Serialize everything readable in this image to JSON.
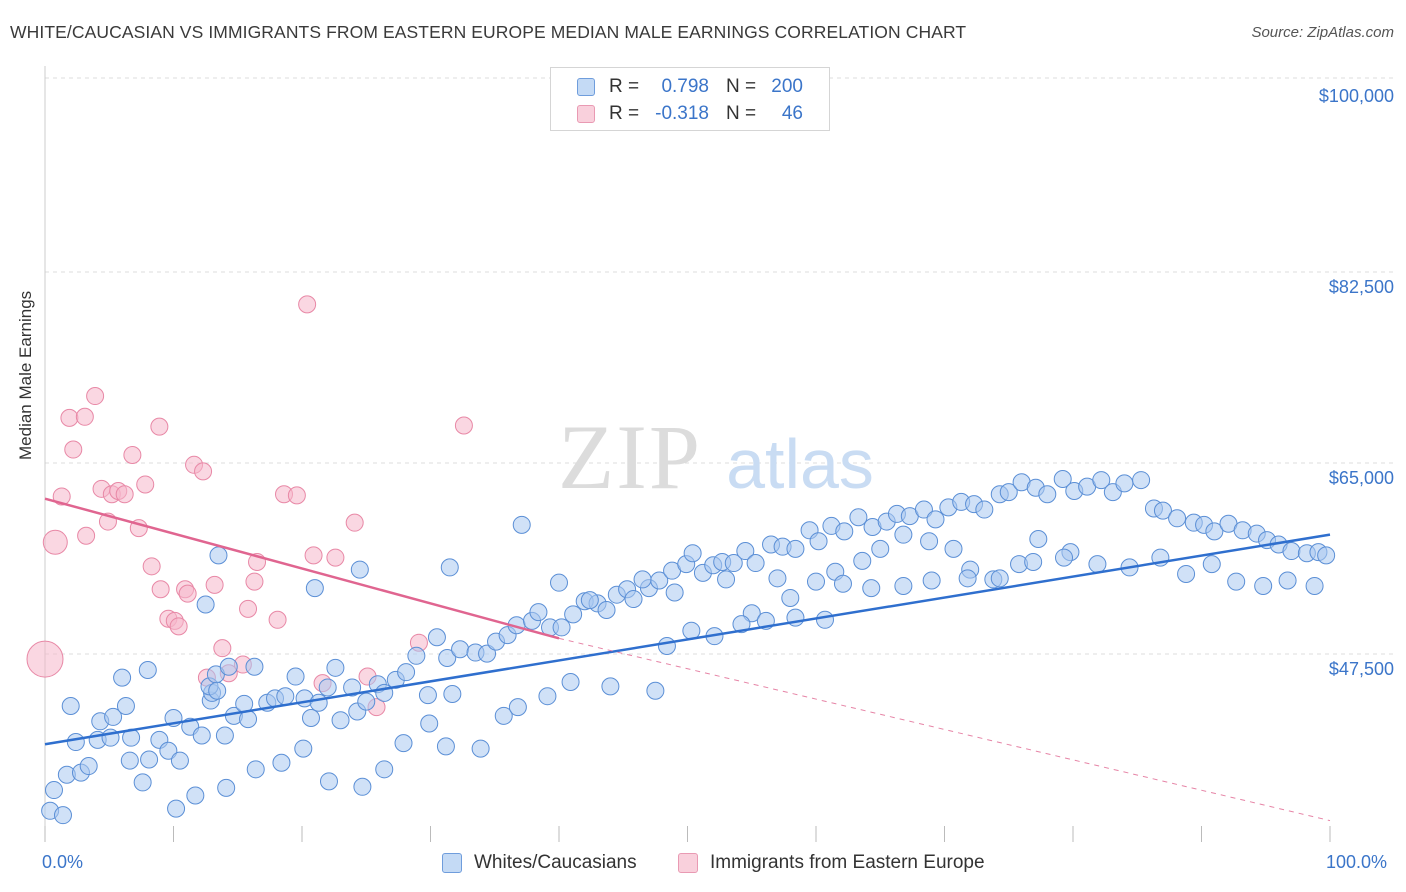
{
  "header": {
    "title": "WHITE/CAUCASIAN VS IMMIGRANTS FROM EASTERN EUROPE MEDIAN MALE EARNINGS CORRELATION CHART",
    "source": "Source: ZipAtlas.com"
  },
  "watermark": {
    "zip": "ZIP",
    "atlas": "atlas"
  },
  "legend_top": {
    "rows": [
      {
        "r_label": "R =",
        "r_value": "0.798",
        "n_label": "N =",
        "n_value": "200"
      },
      {
        "r_label": "R =",
        "r_value": "-0.318",
        "n_label": "N =",
        "n_value": "46"
      }
    ]
  },
  "legend_bottom": {
    "items": [
      "Whites/Caucasians",
      "Immigrants from Eastern Europe"
    ]
  },
  "colors": {
    "blue_fill": "#a9c8f0",
    "blue_stroke": "#5b8fd6",
    "blue_line": "#2f6fce",
    "pink_fill": "#f6b7ca",
    "pink_stroke": "#e888a6",
    "pink_line": "#e06590",
    "tick_text": "#3b75c9",
    "grid": "#dddddd"
  },
  "chart_data": {
    "type": "scatter",
    "title": "WHITE/CAUCASIAN VS IMMIGRANTS FROM EASTERN EUROPE MEDIAN MALE EARNINGS CORRELATION CHART",
    "xlabel": "",
    "ylabel": "Median Male Earnings",
    "x_tick_labels": [
      "0.0%",
      "100.0%"
    ],
    "y_tick_labels": [
      "$47,500",
      "$65,000",
      "$82,500",
      "$100,000"
    ],
    "y_ticks": [
      47500,
      65000,
      82500,
      100000
    ],
    "xlim": [
      0,
      100
    ],
    "ylim": [
      32000,
      102000
    ],
    "grid": true,
    "legend_placement": "top-center",
    "series": [
      {
        "name": "Whites/Caucasians",
        "color": "#a9c8f0",
        "R": 0.798,
        "N": 200,
        "trend": {
          "x": [
            0,
            100
          ],
          "y": [
            40700,
            59900
          ]
        },
        "points": [
          [
            0.4,
            34.6
          ],
          [
            0.7,
            36.5
          ],
          [
            1.4,
            34.2
          ],
          [
            1.7,
            37.9
          ],
          [
            2.4,
            40.9
          ],
          [
            2.8,
            38.1
          ],
          [
            3.4,
            38.7
          ],
          [
            4.1,
            41.1
          ],
          [
            4.3,
            42.8
          ],
          [
            5.3,
            43.2
          ],
          [
            6.3,
            44.2
          ],
          [
            5.1,
            41.3
          ],
          [
            6.7,
            41.3
          ],
          [
            6.6,
            39.2
          ],
          [
            7.6,
            37.2
          ],
          [
            8.1,
            39.3
          ],
          [
            8.9,
            41.1
          ],
          [
            9.6,
            40.1
          ],
          [
            10.0,
            43.1
          ],
          [
            10.5,
            39.2
          ],
          [
            11.3,
            42.3
          ],
          [
            12.2,
            41.5
          ],
          [
            12.9,
            44.7
          ],
          [
            13.0,
            45.4
          ],
          [
            12.8,
            46.0
          ],
          [
            13.3,
            47.1
          ],
          [
            13.4,
            45.6
          ],
          [
            14.3,
            47.8
          ],
          [
            14.0,
            41.5
          ],
          [
            14.7,
            43.3
          ],
          [
            15.5,
            44.4
          ],
          [
            15.8,
            43.0
          ],
          [
            16.3,
            47.8
          ],
          [
            17.3,
            44.5
          ],
          [
            17.9,
            44.9
          ],
          [
            18.7,
            45.1
          ],
          [
            19.5,
            46.9
          ],
          [
            20.2,
            44.9
          ],
          [
            20.7,
            43.1
          ],
          [
            21.3,
            44.5
          ],
          [
            22.0,
            45.9
          ],
          [
            22.6,
            47.7
          ],
          [
            23.0,
            42.9
          ],
          [
            23.9,
            45.9
          ],
          [
            24.3,
            43.7
          ],
          [
            25.0,
            44.6
          ],
          [
            25.9,
            46.2
          ],
          [
            26.4,
            45.4
          ],
          [
            27.3,
            46.6
          ],
          [
            28.1,
            47.3
          ],
          [
            28.9,
            48.8
          ],
          [
            29.8,
            45.2
          ],
          [
            30.5,
            50.5
          ],
          [
            31.3,
            48.6
          ],
          [
            31.7,
            45.3
          ],
          [
            32.3,
            49.4
          ],
          [
            33.5,
            49.1
          ],
          [
            34.4,
            49.0
          ],
          [
            35.1,
            50.1
          ],
          [
            36.0,
            50.7
          ],
          [
            36.7,
            51.6
          ],
          [
            37.9,
            52.0
          ],
          [
            38.4,
            52.8
          ],
          [
            39.3,
            51.4
          ],
          [
            40.2,
            51.4
          ],
          [
            41.1,
            52.6
          ],
          [
            42.0,
            53.8
          ],
          [
            43.0,
            53.6
          ],
          [
            43.7,
            53.0
          ],
          [
            44.5,
            54.4
          ],
          [
            45.3,
            54.9
          ],
          [
            45.8,
            54.0
          ],
          [
            47.0,
            55.0
          ],
          [
            47.8,
            55.7
          ],
          [
            48.8,
            56.6
          ],
          [
            49.9,
            57.2
          ],
          [
            50.4,
            58.2
          ],
          [
            51.2,
            56.4
          ],
          [
            52.0,
            57.1
          ],
          [
            52.7,
            57.4
          ],
          [
            53.6,
            57.3
          ],
          [
            54.5,
            58.4
          ],
          [
            55.3,
            57.3
          ],
          [
            56.5,
            59.0
          ],
          [
            57.4,
            58.8
          ],
          [
            58.4,
            58.6
          ],
          [
            59.5,
            60.3
          ],
          [
            60.2,
            59.3
          ],
          [
            61.2,
            60.7
          ],
          [
            62.2,
            60.2
          ],
          [
            63.3,
            61.5
          ],
          [
            64.4,
            60.6
          ],
          [
            65.5,
            61.1
          ],
          [
            66.3,
            61.8
          ],
          [
            67.3,
            61.6
          ],
          [
            68.4,
            62.2
          ],
          [
            69.3,
            61.3
          ],
          [
            70.3,
            62.4
          ],
          [
            71.3,
            62.9
          ],
          [
            72.3,
            62.7
          ],
          [
            73.1,
            62.2
          ],
          [
            74.3,
            63.6
          ],
          [
            75.0,
            63.8
          ],
          [
            76.0,
            64.7
          ],
          [
            77.1,
            64.2
          ],
          [
            78.0,
            63.6
          ],
          [
            79.2,
            65.0
          ],
          [
            80.1,
            63.9
          ],
          [
            81.1,
            64.3
          ],
          [
            82.2,
            64.9
          ],
          [
            83.1,
            63.8
          ],
          [
            84.0,
            64.6
          ],
          [
            85.3,
            64.9
          ],
          [
            86.3,
            62.3
          ],
          [
            87.0,
            62.1
          ],
          [
            88.1,
            61.4
          ],
          [
            89.4,
            61.0
          ],
          [
            90.2,
            60.8
          ],
          [
            91.0,
            60.2
          ],
          [
            92.1,
            60.9
          ],
          [
            93.2,
            60.3
          ],
          [
            94.3,
            60.0
          ],
          [
            95.1,
            59.4
          ],
          [
            96.0,
            59.0
          ],
          [
            97.0,
            58.4
          ],
          [
            98.2,
            58.2
          ],
          [
            99.1,
            58.3
          ],
          [
            99.7,
            58.0
          ],
          [
            13.5,
            58.0
          ],
          [
            12.5,
            53.5
          ],
          [
            8.0,
            47.5
          ],
          [
            6.0,
            46.8
          ],
          [
            2.0,
            44.2
          ],
          [
            21.0,
            55.0
          ],
          [
            24.5,
            56.7
          ],
          [
            31.5,
            56.9
          ],
          [
            37.1,
            60.8
          ],
          [
            40.0,
            55.5
          ],
          [
            42.4,
            53.9
          ],
          [
            46.5,
            55.8
          ],
          [
            49.0,
            54.6
          ],
          [
            53.0,
            55.8
          ],
          [
            55.0,
            52.7
          ],
          [
            57.0,
            55.9
          ],
          [
            58.0,
            54.1
          ],
          [
            60.0,
            55.6
          ],
          [
            61.5,
            56.5
          ],
          [
            63.6,
            57.5
          ],
          [
            65.0,
            58.6
          ],
          [
            66.8,
            59.9
          ],
          [
            68.8,
            59.3
          ],
          [
            70.7,
            58.6
          ],
          [
            72.0,
            56.7
          ],
          [
            73.8,
            55.8
          ],
          [
            75.8,
            57.2
          ],
          [
            77.3,
            59.5
          ],
          [
            79.8,
            58.3
          ],
          [
            81.9,
            57.2
          ],
          [
            84.4,
            56.9
          ],
          [
            86.8,
            57.8
          ],
          [
            88.8,
            56.3
          ],
          [
            90.8,
            57.2
          ],
          [
            92.7,
            55.6
          ],
          [
            94.8,
            55.2
          ],
          [
            96.7,
            55.7
          ],
          [
            98.8,
            55.2
          ],
          [
            14.1,
            36.7
          ],
          [
            10.2,
            34.8
          ],
          [
            11.7,
            36.0
          ],
          [
            16.4,
            38.4
          ],
          [
            18.4,
            39.0
          ],
          [
            20.1,
            40.3
          ],
          [
            22.1,
            37.3
          ],
          [
            24.7,
            36.8
          ],
          [
            26.4,
            38.4
          ],
          [
            27.9,
            40.8
          ],
          [
            29.9,
            42.6
          ],
          [
            31.2,
            40.5
          ],
          [
            33.9,
            40.3
          ],
          [
            35.7,
            43.3
          ],
          [
            36.8,
            44.1
          ],
          [
            39.1,
            45.1
          ],
          [
            40.9,
            46.4
          ],
          [
            44.0,
            46.0
          ],
          [
            47.5,
            45.6
          ],
          [
            48.4,
            49.7
          ],
          [
            50.3,
            51.1
          ],
          [
            52.1,
            50.6
          ],
          [
            54.2,
            51.7
          ],
          [
            56.1,
            52.0
          ],
          [
            58.4,
            52.3
          ],
          [
            60.7,
            52.1
          ],
          [
            62.1,
            55.4
          ],
          [
            64.3,
            55.0
          ],
          [
            66.8,
            55.2
          ],
          [
            69.0,
            55.7
          ],
          [
            71.8,
            55.9
          ],
          [
            74.3,
            55.9
          ],
          [
            76.9,
            57.4
          ],
          [
            79.3,
            57.8
          ]
        ]
      },
      {
        "name": "Immigrants from Eastern Europe",
        "color": "#f6b7ca",
        "R": -0.318,
        "N": 46,
        "trend": {
          "x": [
            0,
            40
          ],
          "y": [
            63200,
            50400
          ]
        },
        "trend_dashed_extension": {
          "x": [
            40,
            100
          ],
          "y": [
            50400,
            33700
          ]
        },
        "points": [
          [
            0.0,
            48.5
          ],
          [
            0.8,
            59.2
          ],
          [
            1.3,
            63.4
          ],
          [
            1.9,
            70.6
          ],
          [
            2.2,
            67.7
          ],
          [
            3.1,
            70.7
          ],
          [
            3.2,
            59.8
          ],
          [
            3.9,
            72.6
          ],
          [
            4.4,
            64.1
          ],
          [
            4.9,
            61.1
          ],
          [
            5.2,
            63.6
          ],
          [
            5.7,
            63.9
          ],
          [
            6.2,
            63.6
          ],
          [
            6.8,
            67.2
          ],
          [
            7.3,
            60.5
          ],
          [
            7.8,
            64.5
          ],
          [
            8.3,
            57.0
          ],
          [
            8.9,
            69.8
          ],
          [
            9.0,
            54.9
          ],
          [
            9.6,
            52.2
          ],
          [
            10.1,
            52.0
          ],
          [
            10.4,
            51.5
          ],
          [
            10.9,
            54.9
          ],
          [
            11.1,
            54.5
          ],
          [
            11.6,
            66.3
          ],
          [
            12.3,
            65.7
          ],
          [
            12.6,
            46.8
          ],
          [
            13.2,
            55.3
          ],
          [
            13.8,
            49.5
          ],
          [
            14.3,
            47.2
          ],
          [
            15.4,
            48.0
          ],
          [
            15.8,
            53.1
          ],
          [
            16.3,
            55.6
          ],
          [
            16.5,
            57.4
          ],
          [
            18.1,
            52.1
          ],
          [
            18.6,
            63.6
          ],
          [
            19.6,
            63.5
          ],
          [
            20.4,
            81.0
          ],
          [
            20.9,
            58.0
          ],
          [
            21.6,
            46.3
          ],
          [
            22.6,
            57.8
          ],
          [
            24.1,
            61.0
          ],
          [
            25.1,
            46.9
          ],
          [
            25.8,
            44.1
          ],
          [
            29.1,
            50.0
          ],
          [
            32.6,
            69.9
          ]
        ]
      }
    ]
  }
}
